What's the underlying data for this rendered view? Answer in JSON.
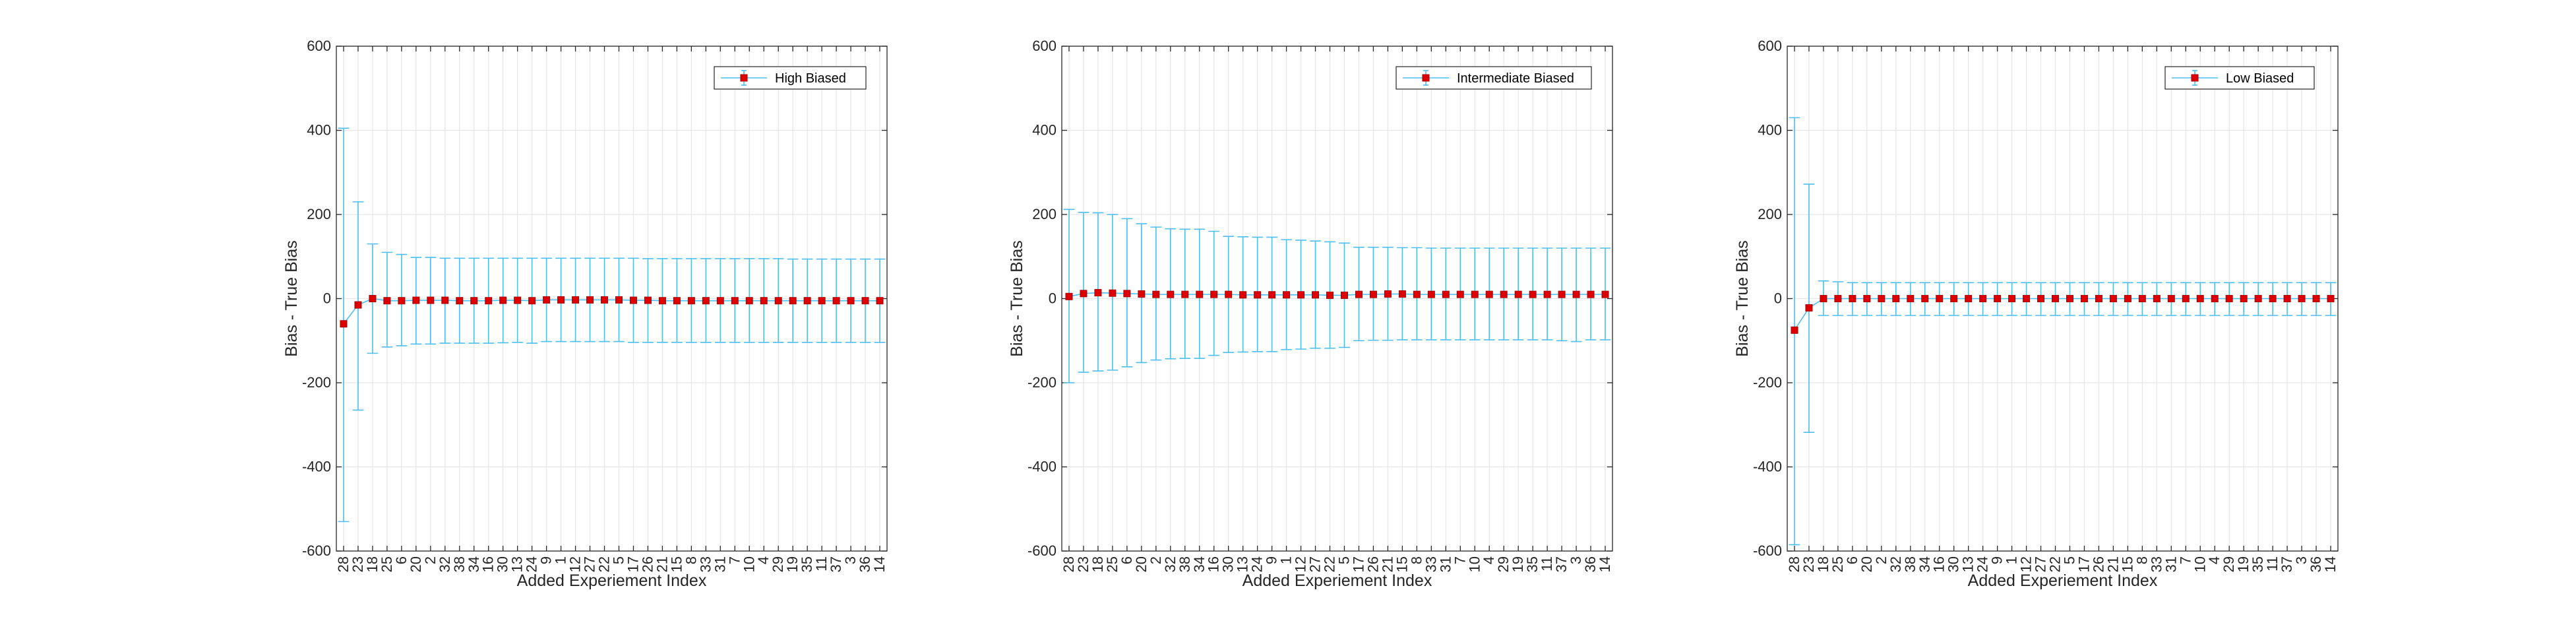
{
  "figure": {
    "colors": {
      "errorbar": "#4DBEEE",
      "marker": "#DD0000",
      "grid": "#E6E6E6",
      "axis": "#262626"
    }
  },
  "chart_data": [
    {
      "type": "line",
      "error_bars": true,
      "xlabel": "Added Experiement Index",
      "ylabel": "Bias - True Bias",
      "ylim": [
        -600,
        600
      ],
      "yticks": [
        -600,
        -400,
        -200,
        0,
        200,
        400,
        600
      ],
      "grid": true,
      "legend_position": "top-right",
      "categories": [
        "28",
        "23",
        "18",
        "25",
        "6",
        "20",
        "2",
        "32",
        "38",
        "34",
        "16",
        "30",
        "13",
        "24",
        "9",
        "1",
        "12",
        "27",
        "22",
        "5",
        "17",
        "26",
        "21",
        "15",
        "8",
        "33",
        "31",
        "7",
        "10",
        "4",
        "29",
        "19",
        "35",
        "11",
        "37",
        "3",
        "36",
        "14"
      ],
      "series": [
        {
          "name": "High Biased",
          "values": [
            -60,
            -15,
            0,
            -5,
            -5,
            -4,
            -4,
            -4,
            -5,
            -5,
            -5,
            -4,
            -4,
            -5,
            -3,
            -3,
            -3,
            -3,
            -3,
            -3,
            -4,
            -4,
            -5,
            -5,
            -5,
            -5,
            -5,
            -5,
            -5,
            -5,
            -5,
            -5,
            -5,
            -5,
            -5,
            -5,
            -5,
            -5
          ],
          "upper": [
            405,
            230,
            130,
            110,
            105,
            98,
            98,
            96,
            96,
            96,
            96,
            96,
            96,
            96,
            96,
            96,
            96,
            96,
            96,
            96,
            96,
            95,
            95,
            95,
            95,
            95,
            95,
            95,
            95,
            95,
            95,
            94,
            94,
            94,
            94,
            94,
            94,
            94
          ],
          "lower": [
            -530,
            -265,
            -130,
            -115,
            -112,
            -108,
            -108,
            -106,
            -106,
            -106,
            -106,
            -105,
            -104,
            -106,
            -102,
            -102,
            -102,
            -102,
            -102,
            -102,
            -104,
            -104,
            -104,
            -104,
            -104,
            -104,
            -104,
            -104,
            -104,
            -104,
            -104,
            -104,
            -104,
            -104,
            -104,
            -104,
            -104,
            -104
          ]
        }
      ]
    },
    {
      "type": "line",
      "error_bars": true,
      "xlabel": "Added Experiement Index",
      "ylabel": "Bias - True Bias",
      "ylim": [
        -600,
        600
      ],
      "yticks": [
        -600,
        -400,
        -200,
        0,
        200,
        400,
        600
      ],
      "grid": true,
      "legend_position": "top-right",
      "categories": [
        "28",
        "23",
        "18",
        "25",
        "6",
        "20",
        "2",
        "32",
        "38",
        "34",
        "16",
        "30",
        "13",
        "24",
        "9",
        "1",
        "12",
        "27",
        "22",
        "5",
        "17",
        "26",
        "21",
        "15",
        "8",
        "33",
        "31",
        "7",
        "10",
        "4",
        "29",
        "19",
        "35",
        "11",
        "37",
        "3",
        "36",
        "14"
      ],
      "series": [
        {
          "name": "Intermediate Biased",
          "values": [
            5,
            12,
            14,
            13,
            12,
            11,
            10,
            10,
            10,
            10,
            10,
            10,
            9,
            9,
            9,
            9,
            9,
            9,
            8,
            8,
            10,
            10,
            11,
            11,
            10,
            10,
            10,
            10,
            10,
            10,
            10,
            10,
            10,
            10,
            10,
            10,
            10,
            10
          ],
          "upper": [
            212,
            205,
            204,
            200,
            190,
            178,
            170,
            166,
            165,
            165,
            160,
            148,
            147,
            146,
            146,
            140,
            139,
            137,
            135,
            132,
            122,
            122,
            122,
            121,
            121,
            120,
            120,
            120,
            120,
            120,
            120,
            120,
            120,
            120,
            120,
            120,
            120,
            120
          ],
          "lower": [
            -200,
            -175,
            -172,
            -170,
            -162,
            -152,
            -146,
            -143,
            -142,
            -142,
            -135,
            -128,
            -127,
            -126,
            -126,
            -121,
            -120,
            -118,
            -118,
            -116,
            -100,
            -99,
            -99,
            -98,
            -98,
            -98,
            -98,
            -98,
            -98,
            -98,
            -98,
            -98,
            -98,
            -98,
            -100,
            -102,
            -98,
            -98
          ]
        }
      ]
    },
    {
      "type": "line",
      "error_bars": true,
      "xlabel": "Added Experiement Index",
      "ylabel": "Bias - True Bias",
      "ylim": [
        -600,
        600
      ],
      "yticks": [
        -600,
        -400,
        -200,
        0,
        200,
        400,
        600
      ],
      "grid": true,
      "legend_position": "top-right",
      "categories": [
        "28",
        "23",
        "18",
        "25",
        "6",
        "20",
        "2",
        "32",
        "38",
        "34",
        "16",
        "30",
        "13",
        "24",
        "9",
        "1",
        "12",
        "27",
        "22",
        "5",
        "17",
        "26",
        "21",
        "15",
        "8",
        "33",
        "31",
        "7",
        "10",
        "4",
        "29",
        "19",
        "35",
        "11",
        "37",
        "3",
        "36",
        "14"
      ],
      "series": [
        {
          "name": "Low Biased",
          "values": [
            -75,
            -22,
            0,
            0,
            0,
            0,
            0,
            0,
            0,
            0,
            0,
            0,
            0,
            0,
            0,
            0,
            0,
            0,
            0,
            0,
            0,
            0,
            0,
            0,
            0,
            0,
            0,
            0,
            0,
            0,
            0,
            0,
            0,
            0,
            0,
            0,
            0,
            0
          ],
          "upper": [
            430,
            272,
            42,
            40,
            38,
            38,
            38,
            38,
            38,
            38,
            38,
            38,
            38,
            38,
            38,
            38,
            38,
            38,
            38,
            38,
            38,
            38,
            38,
            38,
            38,
            38,
            38,
            38,
            38,
            38,
            38,
            38,
            38,
            38,
            38,
            38,
            38,
            38
          ],
          "lower": [
            -585,
            -318,
            -40,
            -40,
            -40,
            -40,
            -40,
            -40,
            -40,
            -40,
            -40,
            -40,
            -40,
            -40,
            -40,
            -40,
            -40,
            -40,
            -40,
            -40,
            -40,
            -40,
            -40,
            -40,
            -40,
            -40,
            -40,
            -40,
            -40,
            -40,
            -40,
            -40,
            -40,
            -40,
            -40,
            -40,
            -40,
            -40
          ]
        }
      ]
    }
  ]
}
